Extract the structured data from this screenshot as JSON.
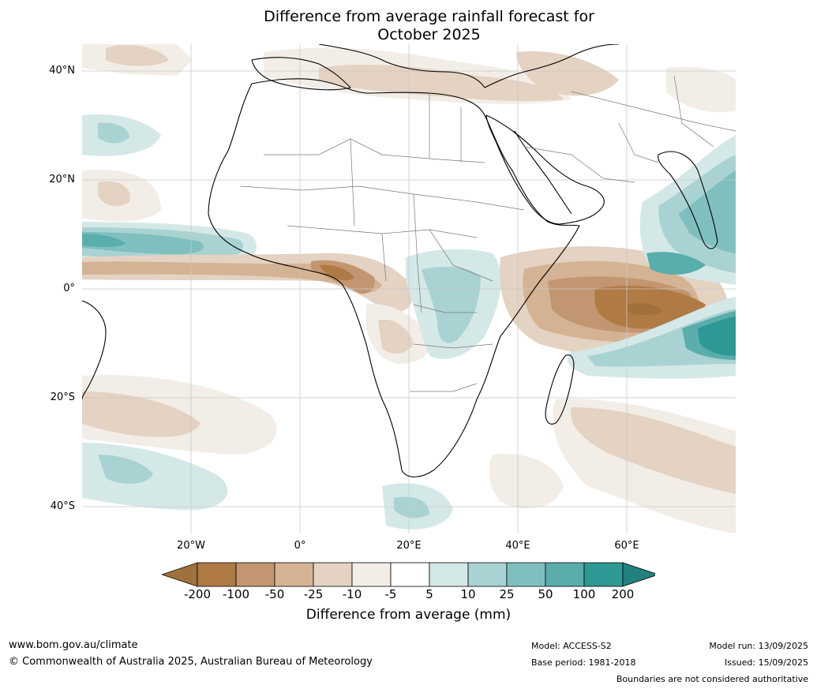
{
  "title": {
    "line1": "Difference from average rainfall forecast for",
    "line2": "October 2025"
  },
  "axes": {
    "lat_labels": [
      "40°N",
      "20°N",
      "0°",
      "20°S",
      "40°S"
    ],
    "lon_labels": [
      "20°W",
      "0°",
      "20°E",
      "40°E",
      "60°E"
    ]
  },
  "colorbar": {
    "labels": [
      "-200",
      "-100",
      "-50",
      "-25",
      "-10",
      "-5",
      "5",
      "10",
      "25",
      "50",
      "100",
      "200"
    ],
    "colors": [
      "#a0703d",
      "#b07a45",
      "#c29670",
      "#d4b394",
      "#e4d2c2",
      "#f2ede7",
      "#ffffff",
      "#d5e8e8",
      "#a9d3d2",
      "#7fc0bf",
      "#59aeac",
      "#2e9994",
      "#23807c"
    ],
    "title": "Difference from average (mm)"
  },
  "footer": {
    "website": "www.bom.gov.au/climate",
    "copyright": "© Commonwealth of Australia 2025, Australian Bureau of Meteorology",
    "model": "Model: ACCESS-S2",
    "base_period": "Base period: 1981-2018",
    "model_run": "Model run: 13/09/2025",
    "issued": "Issued: 15/09/2025",
    "disclaimer": "Boundaries are not considered authoritative"
  }
}
